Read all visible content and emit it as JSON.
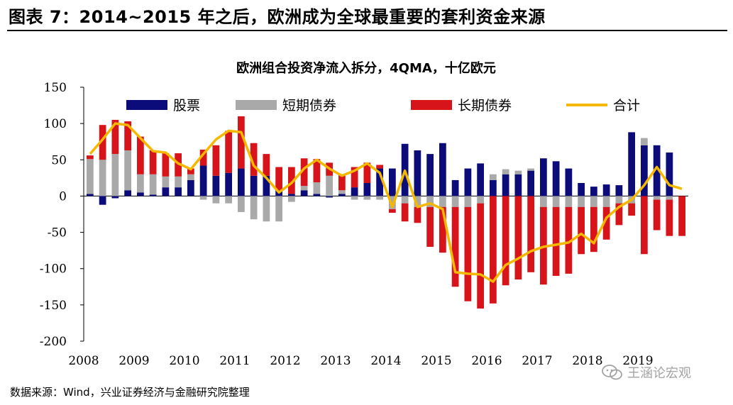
{
  "figure_title": "图表 7：2014~2015 年之后，欧洲成为全球最重要的套利资金来源",
  "source_note": "数据来源：Wind，兴业证券经济与金融研究院整理",
  "watermark": "王涵论宏观",
  "colors": {
    "equity": "#0b0b7a",
    "short_bonds": "#a9a9a9",
    "long_bonds": "#d7141a",
    "total": "#f5b800"
  },
  "chart_data": {
    "type": "bar",
    "title": "欧洲组合投资净流入拆分，4QMA，十亿欧元",
    "ylim": [
      -200,
      150
    ],
    "yticks": [
      -200,
      -150,
      -100,
      -50,
      0,
      50,
      100,
      150
    ],
    "x_year_labels": [
      "2008",
      "2009",
      "2010",
      "2011",
      "2012",
      "2013",
      "2014",
      "2015",
      "2016",
      "2017",
      "2018",
      "2019"
    ],
    "quarters": [
      "2008Q1",
      "2008Q2",
      "2008Q3",
      "2008Q4",
      "2009Q1",
      "2009Q2",
      "2009Q3",
      "2009Q4",
      "2010Q1",
      "2010Q2",
      "2010Q3",
      "2010Q4",
      "2011Q1",
      "2011Q2",
      "2011Q3",
      "2011Q4",
      "2012Q1",
      "2012Q2",
      "2012Q3",
      "2012Q4",
      "2013Q1",
      "2013Q2",
      "2013Q3",
      "2013Q4",
      "2014Q1",
      "2014Q2",
      "2014Q3",
      "2014Q4",
      "2015Q1",
      "2015Q2",
      "2015Q3",
      "2015Q4",
      "2016Q1",
      "2016Q2",
      "2016Q3",
      "2016Q4",
      "2017Q1",
      "2017Q2",
      "2017Q3",
      "2017Q4",
      "2018Q1",
      "2018Q2",
      "2018Q3",
      "2018Q4",
      "2019Q1",
      "2019Q2",
      "2019Q3",
      "2019Q4"
    ],
    "legend": [
      "股票",
      "短期债券",
      "长期债券",
      "合计"
    ],
    "series": [
      {
        "name": "股票",
        "type": "bar",
        "values": [
          3,
          -12,
          -3,
          8,
          5,
          2,
          12,
          12,
          22,
          42,
          28,
          32,
          38,
          28,
          28,
          8,
          3,
          8,
          3,
          -2,
          3,
          12,
          18,
          38,
          38,
          72,
          63,
          58,
          73,
          22,
          38,
          45,
          22,
          30,
          30,
          35,
          52,
          48,
          38,
          18,
          13,
          16,
          15,
          88,
          70,
          70,
          60,
          0
        ]
      },
      {
        "name": "短期债券",
        "type": "bar",
        "values": [
          48,
          50,
          58,
          55,
          25,
          28,
          15,
          15,
          8,
          -5,
          -10,
          -10,
          -22,
          -32,
          -35,
          -35,
          -8,
          6,
          16,
          28,
          5,
          -5,
          -5,
          -5,
          -18,
          -10,
          -15,
          -15,
          -15,
          -15,
          -15,
          -10,
          8,
          7,
          5,
          3,
          -15,
          -15,
          -15,
          -15,
          -15,
          -15,
          -10,
          -10,
          10,
          -5,
          -5,
          0
        ]
      },
      {
        "name": "长期债券",
        "type": "bar",
        "values": [
          5,
          48,
          47,
          40,
          52,
          33,
          32,
          32,
          8,
          22,
          42,
          58,
          72,
          45,
          30,
          32,
          37,
          38,
          32,
          18,
          22,
          28,
          28,
          5,
          -5,
          -25,
          -22,
          -55,
          -63,
          -110,
          -130,
          -145,
          -148,
          -123,
          -115,
          -105,
          -107,
          -95,
          -92,
          -65,
          -62,
          -45,
          -30,
          -17,
          -80,
          -42,
          -50,
          -55
        ]
      },
      {
        "name": "合计",
        "type": "line",
        "values": [
          58,
          78,
          100,
          98,
          80,
          62,
          60,
          45,
          37,
          58,
          78,
          90,
          88,
          42,
          25,
          5,
          18,
          38,
          50,
          38,
          28,
          35,
          45,
          32,
          -15,
          35,
          -15,
          -10,
          -18,
          -105,
          -107,
          -108,
          -118,
          -95,
          -86,
          -76,
          -70,
          -67,
          -64,
          -52,
          -65,
          -30,
          -15,
          -5,
          15,
          40,
          15,
          10
        ]
      }
    ]
  }
}
